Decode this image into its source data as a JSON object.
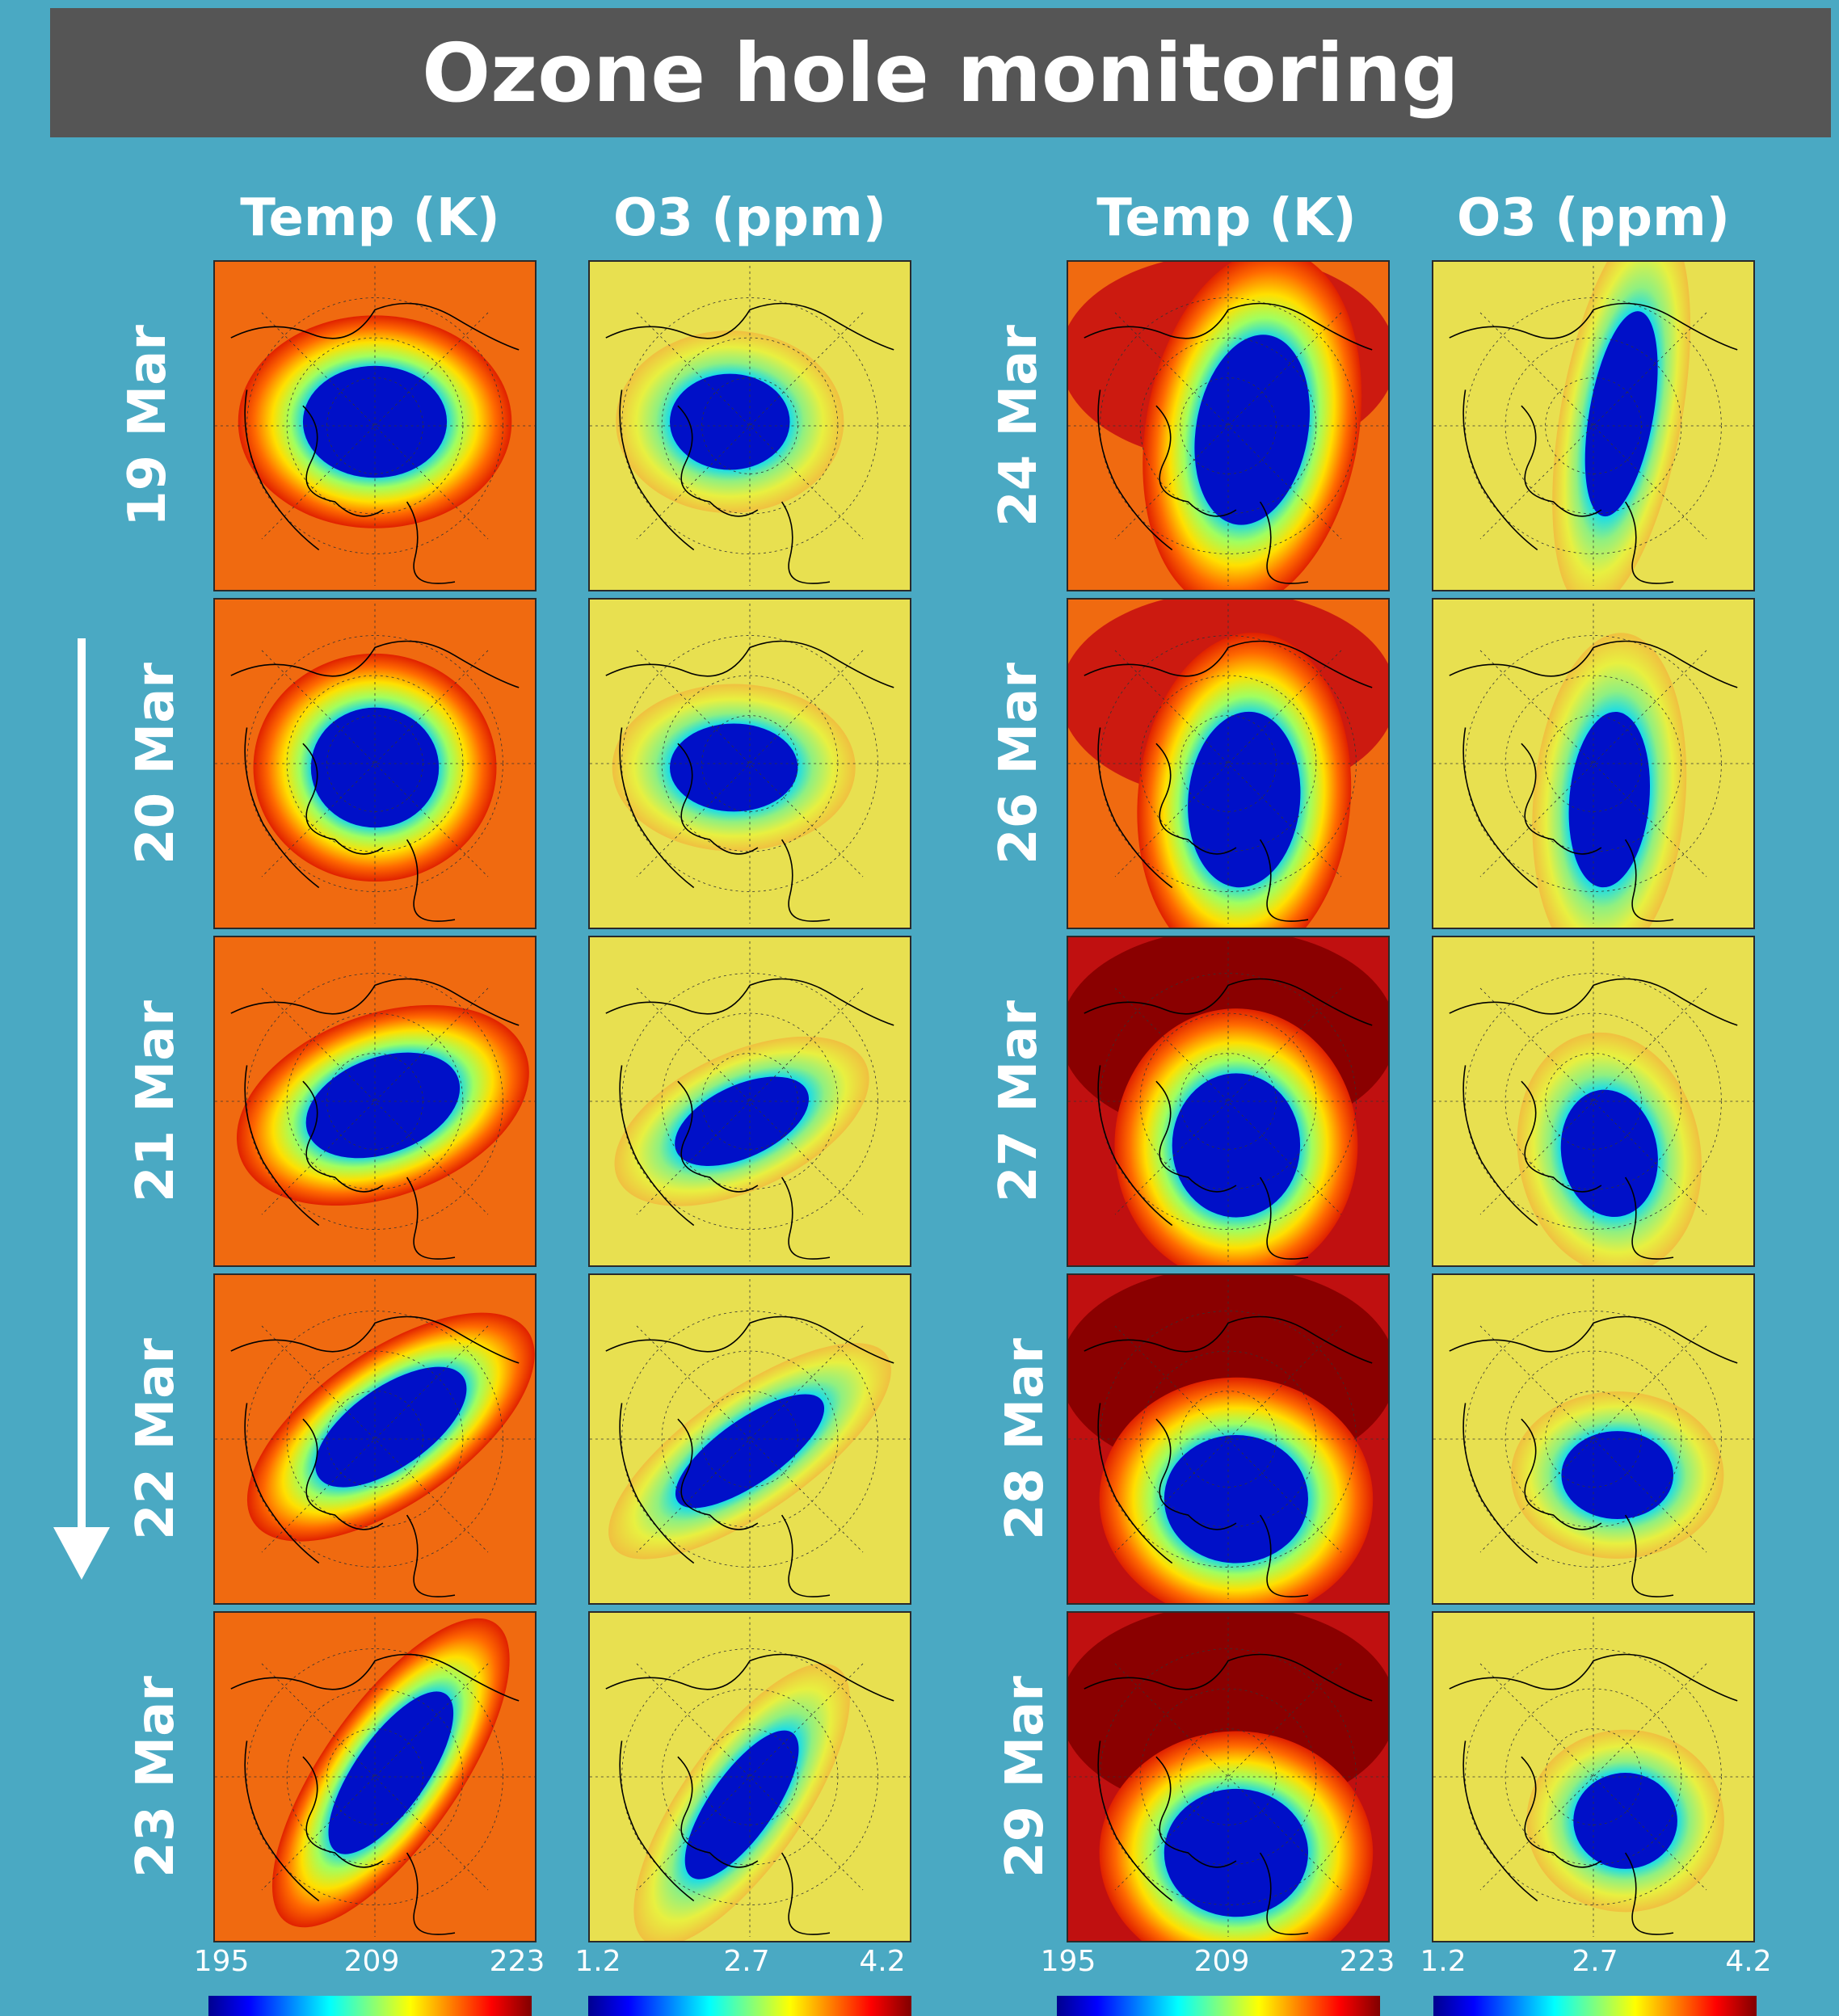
{
  "title": "Ozone hole monitoring",
  "columns": [
    {
      "header": "Temp (K)",
      "variable": "temp"
    },
    {
      "header": "O3 (ppm)",
      "variable": "o3"
    },
    {
      "header": "Temp (K)",
      "variable": "temp"
    },
    {
      "header": "O3 (ppm)",
      "variable": "o3"
    }
  ],
  "left_group": {
    "dates": [
      "19 Mar",
      "20 Mar",
      "21 Mar",
      "22 Mar",
      "23 Mar"
    ]
  },
  "right_group": {
    "dates": [
      "24 Mar",
      "26 Mar",
      "27 Mar",
      "28 Mar",
      "29 Mar"
    ]
  },
  "colorbars": [
    {
      "ticks": [
        "195",
        "209",
        "223"
      ]
    },
    {
      "ticks": [
        "1.2",
        "2.7",
        "4.2"
      ]
    },
    {
      "ticks": [
        "195",
        "209",
        "223"
      ]
    },
    {
      "ticks": [
        "1.2",
        "2.7",
        "4.2"
      ]
    }
  ],
  "colormap": [
    "#00008f",
    "#0000ff",
    "#007fff",
    "#00ffff",
    "#7fff7f",
    "#ffff00",
    "#ff7f00",
    "#ff0000",
    "#800000"
  ],
  "time_arrow": "arrow-down-icon"
}
